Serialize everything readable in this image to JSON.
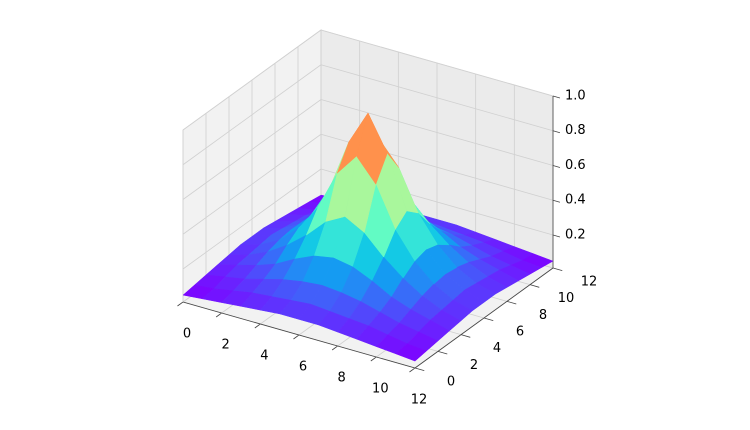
{
  "chart_data": {
    "type": "surface3d",
    "colormap": "rainbow",
    "grid": true,
    "x": [
      0,
      1,
      2,
      3,
      4,
      5,
      6,
      7,
      8,
      9,
      10,
      11,
      12
    ],
    "y": [
      0,
      1,
      2,
      3,
      4,
      5,
      6,
      7,
      8,
      9,
      10,
      11,
      12
    ],
    "z": [
      [
        0.05,
        0.06,
        0.07,
        0.08,
        0.09,
        0.1,
        0.1,
        0.1,
        0.09,
        0.08,
        0.07,
        0.06,
        0.05
      ],
      [
        0.06,
        0.07,
        0.09,
        0.11,
        0.12,
        0.13,
        0.14,
        0.13,
        0.12,
        0.11,
        0.09,
        0.07,
        0.06
      ],
      [
        0.07,
        0.09,
        0.11,
        0.14,
        0.17,
        0.19,
        0.2,
        0.19,
        0.17,
        0.14,
        0.11,
        0.09,
        0.07
      ],
      [
        0.08,
        0.11,
        0.14,
        0.18,
        0.24,
        0.29,
        0.31,
        0.29,
        0.24,
        0.18,
        0.14,
        0.11,
        0.08
      ],
      [
        0.09,
        0.12,
        0.17,
        0.24,
        0.33,
        0.44,
        0.5,
        0.44,
        0.33,
        0.24,
        0.17,
        0.12,
        0.09
      ],
      [
        0.1,
        0.13,
        0.19,
        0.29,
        0.44,
        0.67,
        0.8,
        0.67,
        0.44,
        0.29,
        0.19,
        0.13,
        0.1
      ],
      [
        0.1,
        0.14,
        0.2,
        0.31,
        0.5,
        0.8,
        1.0,
        0.8,
        0.5,
        0.31,
        0.2,
        0.14,
        0.1
      ],
      [
        0.1,
        0.13,
        0.19,
        0.29,
        0.44,
        0.67,
        0.8,
        0.67,
        0.44,
        0.29,
        0.19,
        0.13,
        0.1
      ],
      [
        0.09,
        0.12,
        0.17,
        0.24,
        0.33,
        0.44,
        0.5,
        0.44,
        0.33,
        0.24,
        0.17,
        0.12,
        0.09
      ],
      [
        0.08,
        0.11,
        0.14,
        0.18,
        0.24,
        0.29,
        0.31,
        0.29,
        0.24,
        0.18,
        0.14,
        0.11,
        0.08
      ],
      [
        0.07,
        0.09,
        0.11,
        0.14,
        0.17,
        0.19,
        0.2,
        0.19,
        0.17,
        0.14,
        0.11,
        0.09,
        0.07
      ],
      [
        0.06,
        0.07,
        0.09,
        0.11,
        0.12,
        0.13,
        0.14,
        0.13,
        0.12,
        0.11,
        0.09,
        0.07,
        0.06
      ],
      [
        0.05,
        0.06,
        0.07,
        0.08,
        0.09,
        0.1,
        0.1,
        0.1,
        0.09,
        0.08,
        0.07,
        0.06,
        0.05
      ]
    ],
    "xlim": [
      0,
      12
    ],
    "ylim": [
      0,
      12
    ],
    "zlim": [
      0.01,
      1.0
    ],
    "xticks": [
      0,
      2,
      4,
      6,
      8,
      10,
      12
    ],
    "yticks": [
      0,
      2,
      4,
      6,
      8,
      10,
      12
    ],
    "zticks": [
      0.2,
      0.4,
      0.6,
      0.8,
      {
        "value": 1.0,
        "label": "1.0"
      }
    ]
  }
}
